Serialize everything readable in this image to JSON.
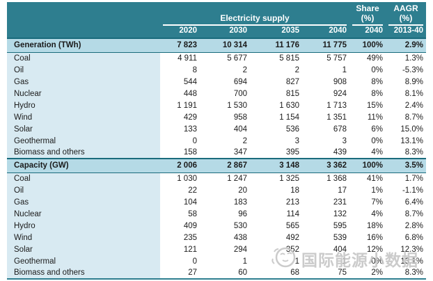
{
  "chart_data": {
    "type": "table",
    "title": "Electricity supply",
    "column_groups": {
      "supply": "Electricity supply",
      "share": "Share (%)",
      "aagr": "AAGR (%)"
    },
    "columns": [
      "2020",
      "2030",
      "2035",
      "2040",
      "2040",
      "2013-40"
    ],
    "sections": [
      {
        "title": "Generation (TWh)",
        "values": [
          "7 823",
          "10 314",
          "11 176",
          "11 775",
          "100%",
          "2.9%"
        ],
        "rows": [
          {
            "label": "Coal",
            "values": [
              "4 911",
              "5 677",
              "5 815",
              "5 757",
              "49%",
              "1.3%"
            ]
          },
          {
            "label": "Oil",
            "values": [
              "8",
              "2",
              "2",
              "1",
              "0%",
              "-5.3%"
            ]
          },
          {
            "label": "Gas",
            "values": [
              "544",
              "694",
              "827",
              "908",
              "8%",
              "8.9%"
            ]
          },
          {
            "label": "Nuclear",
            "values": [
              "448",
              "700",
              "815",
              "924",
              "8%",
              "8.1%"
            ]
          },
          {
            "label": "Hydro",
            "values": [
              "1 191",
              "1 530",
              "1 630",
              "1 713",
              "15%",
              "2.4%"
            ]
          },
          {
            "label": "Wind",
            "values": [
              "429",
              "958",
              "1 154",
              "1 351",
              "11%",
              "8.7%"
            ]
          },
          {
            "label": "Solar",
            "values": [
              "133",
              "404",
              "536",
              "678",
              "6%",
              "15.0%"
            ]
          },
          {
            "label": "Geothermal",
            "values": [
              "0",
              "2",
              "3",
              "3",
              "0%",
              "13.1%"
            ]
          },
          {
            "label": "Biomass and others",
            "values": [
              "158",
              "347",
              "395",
              "439",
              "4%",
              "8.3%"
            ]
          }
        ]
      },
      {
        "title": "Capacity (GW)",
        "values": [
          "2 006",
          "2 867",
          "3 148",
          "3 362",
          "100%",
          "3.5%"
        ],
        "rows": [
          {
            "label": "Coal",
            "values": [
              "1 030",
              "1 247",
              "1 325",
              "1 368",
              "41%",
              "1.7%"
            ]
          },
          {
            "label": "Oil",
            "values": [
              "22",
              "20",
              "18",
              "17",
              "1%",
              "-1.1%"
            ]
          },
          {
            "label": "Gas",
            "values": [
              "104",
              "183",
              "213",
              "231",
              "7%",
              "6.4%"
            ]
          },
          {
            "label": "Nuclear",
            "values": [
              "58",
              "96",
              "114",
              "132",
              "4%",
              "8.7%"
            ]
          },
          {
            "label": "Hydro",
            "values": [
              "409",
              "530",
              "565",
              "595",
              "18%",
              "2.8%"
            ]
          },
          {
            "label": "Wind",
            "values": [
              "235",
              "438",
              "492",
              "539",
              "16%",
              "6.8%"
            ]
          },
          {
            "label": "Solar",
            "values": [
              "121",
              "294",
              "352",
              "404",
              "12%",
              "12.3%"
            ]
          },
          {
            "label": "Geothermal",
            "values": [
              "0",
              "1",
              "1",
              "1",
              "0%",
              "13.1%"
            ]
          },
          {
            "label": "Biomass and others",
            "values": [
              "27",
              "60",
              "68",
              "75",
              "2%",
              "8.3%"
            ]
          }
        ]
      }
    ]
  },
  "watermark": {
    "text": "国际能源小数据",
    "icon": "laughing-face-logo-icon"
  },
  "colors": {
    "header_teal": "#2E7E8F",
    "section_row_bg": "#B5DAE6",
    "label_column_bg": "#D8EAF2",
    "section_border": "#1A6B7C",
    "watermark_gray": "#C6C6C6"
  }
}
